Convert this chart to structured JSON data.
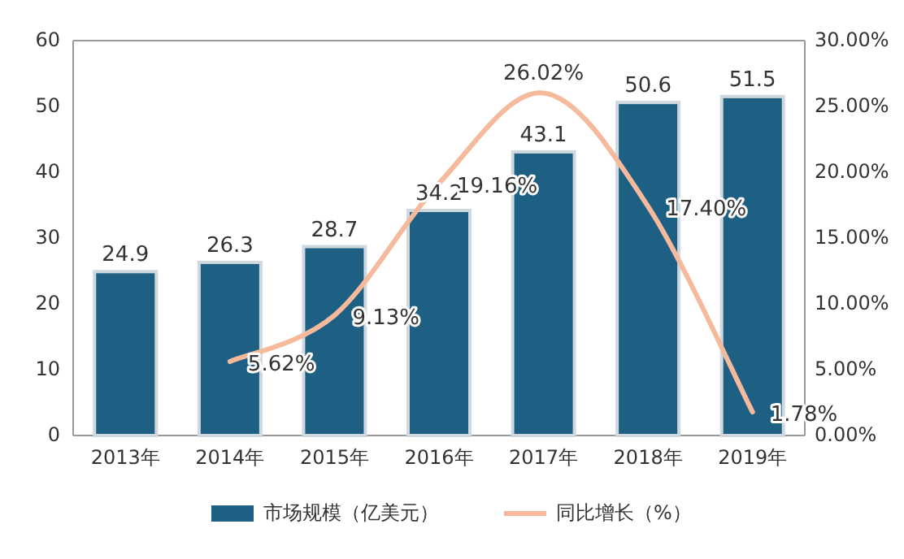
{
  "chart_data": {
    "type": "bar",
    "categories": [
      "2013年",
      "2014年",
      "2015年",
      "2016年",
      "2017年",
      "2018年",
      "2019年"
    ],
    "series": [
      {
        "name": "市场规模（亿美元）",
        "color": "#1e6083",
        "values": [
          24.9,
          26.3,
          28.7,
          34.2,
          43.1,
          50.6,
          51.5
        ],
        "value_labels": [
          "24.9",
          "26.3",
          "28.7",
          "34.2",
          "43.1",
          "50.6",
          "51.5"
        ]
      },
      {
        "name": "同比增长（%）",
        "type": "line",
        "axis": "y2",
        "color": "#f5b99c",
        "values": [
          null,
          5.62,
          9.13,
          19.16,
          26.02,
          17.4,
          1.78
        ],
        "value_labels": [
          null,
          "5.62%",
          "9.13%",
          "19.16%",
          "26.02%",
          "17.40%",
          "1.78%"
        ]
      }
    ],
    "ylim": [
      0,
      60
    ],
    "yticks": [
      0,
      10,
      20,
      30,
      40,
      50,
      60
    ],
    "y2lim": [
      0,
      30
    ],
    "y2ticks": [
      {
        "value": 0,
        "label": "0.00%"
      },
      {
        "value": 5,
        "label": "5.00%"
      },
      {
        "value": 10,
        "label": "10.00%"
      },
      {
        "value": 15,
        "label": "15.00%"
      },
      {
        "value": 20,
        "label": "20.00%"
      },
      {
        "value": 25,
        "label": "25.00%"
      },
      {
        "value": 30,
        "label": "30.00%"
      }
    ],
    "legend": "bottom",
    "marker": "none"
  }
}
